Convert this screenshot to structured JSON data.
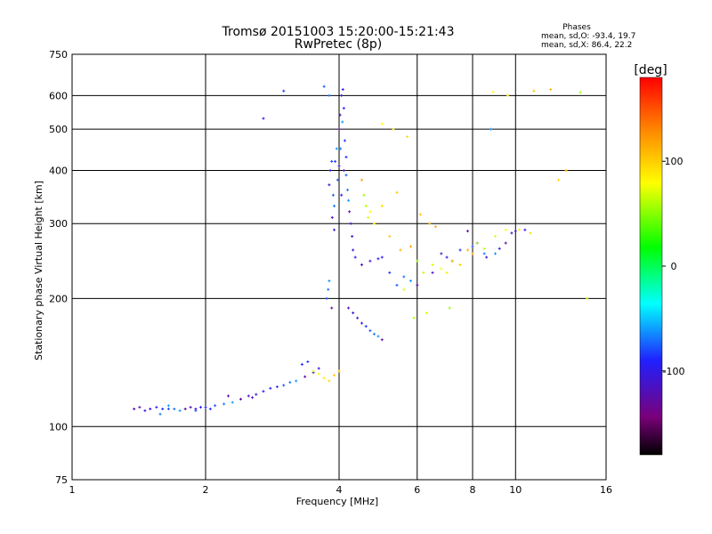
{
  "chart_data": {
    "type": "scatter",
    "title": "Tromsø 20151003 15:20:00-15:21:43",
    "subtitle": "RwPretec (8p)",
    "stats": {
      "heading": "Phases",
      "line_o": "mean, sd,O: -93.4, 19.7",
      "line_x": "mean, sd,X:  86.4, 22.2"
    },
    "xlabel": "Frequency [MHz]",
    "ylabel": "Stationary phase Virtual Height [km]",
    "x_scale": "log",
    "y_scale": "log",
    "xlim": [
      1,
      16
    ],
    "ylim": [
      75,
      750
    ],
    "x_ticks": [
      1,
      2,
      4,
      6,
      8,
      10,
      16
    ],
    "x_tick_labels": [
      "1",
      "2",
      "4",
      "6",
      "8",
      "10",
      "16"
    ],
    "y_ticks": [
      75,
      100,
      200,
      300,
      400,
      500,
      600,
      750
    ],
    "y_tick_labels": [
      "75",
      "100",
      "200",
      "300",
      "400",
      "500",
      "600",
      "750"
    ],
    "grid": true,
    "colorbar": {
      "label": "[deg]",
      "range": [
        -180,
        180
      ],
      "ticks": [
        100,
        0,
        -100
      ],
      "tick_labels": [
        "100",
        "0",
        "-100"
      ],
      "colormap": [
        "#000000",
        "#7a007a",
        "#2020ff",
        "#00ffff",
        "#00ff00",
        "#ffff00",
        "#ff8800",
        "#ff0000"
      ]
    },
    "series": [
      {
        "points": [
          [
            1.38,
            110
          ],
          [
            1.42,
            111
          ],
          [
            1.46,
            109
          ],
          [
            1.5,
            110
          ],
          [
            1.55,
            111
          ],
          [
            1.6,
            110
          ],
          [
            1.65,
            110
          ],
          [
            1.7,
            110
          ],
          [
            1.75,
            109
          ],
          [
            1.8,
            110
          ],
          [
            1.85,
            111
          ],
          [
            1.9,
            110
          ],
          [
            1.95,
            111
          ],
          [
            2.0,
            111
          ],
          [
            2.05,
            110
          ],
          [
            2.1,
            112
          ],
          [
            2.2,
            113
          ],
          [
            2.3,
            114
          ],
          [
            2.4,
            116
          ],
          [
            2.5,
            118
          ],
          [
            2.6,
            119
          ],
          [
            2.7,
            121
          ],
          [
            2.8,
            123
          ],
          [
            2.9,
            124
          ],
          [
            3.0,
            125
          ],
          [
            3.1,
            127
          ],
          [
            3.2,
            128
          ],
          [
            3.35,
            131
          ],
          [
            3.5,
            134
          ],
          [
            3.6,
            137
          ],
          [
            3.8,
            370
          ],
          [
            3.82,
            400
          ],
          [
            3.85,
            420
          ],
          [
            3.88,
            350
          ],
          [
            3.9,
            330
          ],
          [
            3.95,
            450
          ],
          [
            4.0,
            500
          ],
          [
            4.02,
            540
          ],
          [
            4.05,
            600
          ],
          [
            4.08,
            620
          ],
          [
            4.1,
            560
          ],
          [
            4.12,
            470
          ],
          [
            4.15,
            390
          ],
          [
            4.18,
            360
          ],
          [
            4.2,
            340
          ],
          [
            4.22,
            320
          ],
          [
            4.25,
            300
          ],
          [
            4.28,
            280
          ],
          [
            4.3,
            260
          ],
          [
            4.35,
            250
          ],
          [
            3.92,
            420
          ],
          [
            3.97,
            380
          ],
          [
            4.03,
            450
          ],
          [
            4.07,
            520
          ],
          [
            4.1,
            400
          ],
          [
            3.86,
            310
          ],
          [
            3.9,
            290
          ],
          [
            4.0,
            410
          ],
          [
            4.05,
            350
          ],
          [
            4.15,
            430
          ],
          [
            3.75,
            200
          ],
          [
            3.78,
            210
          ],
          [
            3.8,
            220
          ],
          [
            3.85,
            190
          ],
          [
            4.2,
            190
          ],
          [
            4.3,
            185
          ],
          [
            4.4,
            180
          ],
          [
            4.5,
            175
          ],
          [
            4.6,
            172
          ],
          [
            4.7,
            168
          ],
          [
            4.8,
            165
          ],
          [
            4.9,
            163
          ],
          [
            5.0,
            160
          ],
          [
            4.5,
            240
          ],
          [
            4.7,
            245
          ],
          [
            4.9,
            248
          ],
          [
            5.0,
            250
          ],
          [
            5.2,
            230
          ],
          [
            5.4,
            215
          ],
          [
            5.6,
            225
          ],
          [
            5.8,
            220
          ],
          [
            6.0,
            215
          ],
          [
            6.5,
            230
          ],
          [
            6.8,
            255
          ],
          [
            7.0,
            250
          ],
          [
            7.2,
            245
          ],
          [
            7.5,
            260
          ],
          [
            8.0,
            265
          ],
          [
            8.5,
            255
          ],
          [
            9.0,
            255
          ],
          [
            9.5,
            270
          ],
          [
            9.8,
            285
          ],
          [
            10.0,
            288
          ],
          [
            10.5,
            290
          ],
          [
            2.7,
            530
          ],
          [
            3.0,
            615
          ],
          [
            3.7,
            630
          ],
          [
            3.8,
            600
          ],
          [
            8.8,
            500
          ],
          [
            7.8,
            288
          ],
          [
            8.2,
            270
          ],
          [
            8.6,
            250
          ],
          [
            9.2,
            262
          ],
          [
            3.3,
            140
          ],
          [
            3.4,
            142
          ],
          [
            1.9,
            109
          ],
          [
            1.58,
            107
          ],
          [
            1.65,
            112
          ],
          [
            2.25,
            118
          ],
          [
            2.55,
            117
          ]
        ],
        "phase_deg": -93.4
      },
      {
        "points": [
          [
            3.5,
            135
          ],
          [
            3.6,
            133
          ],
          [
            3.7,
            130
          ],
          [
            3.8,
            128
          ],
          [
            3.9,
            132
          ],
          [
            4.0,
            135
          ],
          [
            4.5,
            380
          ],
          [
            4.55,
            350
          ],
          [
            4.6,
            330
          ],
          [
            4.65,
            310
          ],
          [
            4.7,
            320
          ],
          [
            4.8,
            300
          ],
          [
            5.0,
            330
          ],
          [
            5.2,
            280
          ],
          [
            5.5,
            260
          ],
          [
            5.8,
            265
          ],
          [
            6.0,
            245
          ],
          [
            6.2,
            230
          ],
          [
            6.5,
            240
          ],
          [
            6.8,
            235
          ],
          [
            7.0,
            230
          ],
          [
            7.2,
            245
          ],
          [
            7.5,
            240
          ],
          [
            7.8,
            260
          ],
          [
            8.0,
            255
          ],
          [
            8.2,
            270
          ],
          [
            8.5,
            262
          ],
          [
            9.0,
            280
          ],
          [
            9.5,
            290
          ],
          [
            10.2,
            290
          ],
          [
            10.8,
            285
          ],
          [
            11.0,
            615
          ],
          [
            12.0,
            620
          ],
          [
            13.0,
            400
          ],
          [
            14.0,
            610
          ],
          [
            14.5,
            200
          ],
          [
            5.6,
            210
          ],
          [
            5.0,
            515
          ],
          [
            5.3,
            500
          ],
          [
            5.7,
            480
          ],
          [
            6.1,
            315
          ],
          [
            6.4,
            300
          ],
          [
            6.6,
            295
          ],
          [
            7.1,
            190
          ],
          [
            5.9,
            180
          ],
          [
            6.3,
            185
          ],
          [
            8.9,
            612
          ],
          [
            9.6,
            600
          ],
          [
            12.5,
            380
          ],
          [
            5.4,
            355
          ]
        ],
        "phase_deg": 86.4
      }
    ]
  }
}
